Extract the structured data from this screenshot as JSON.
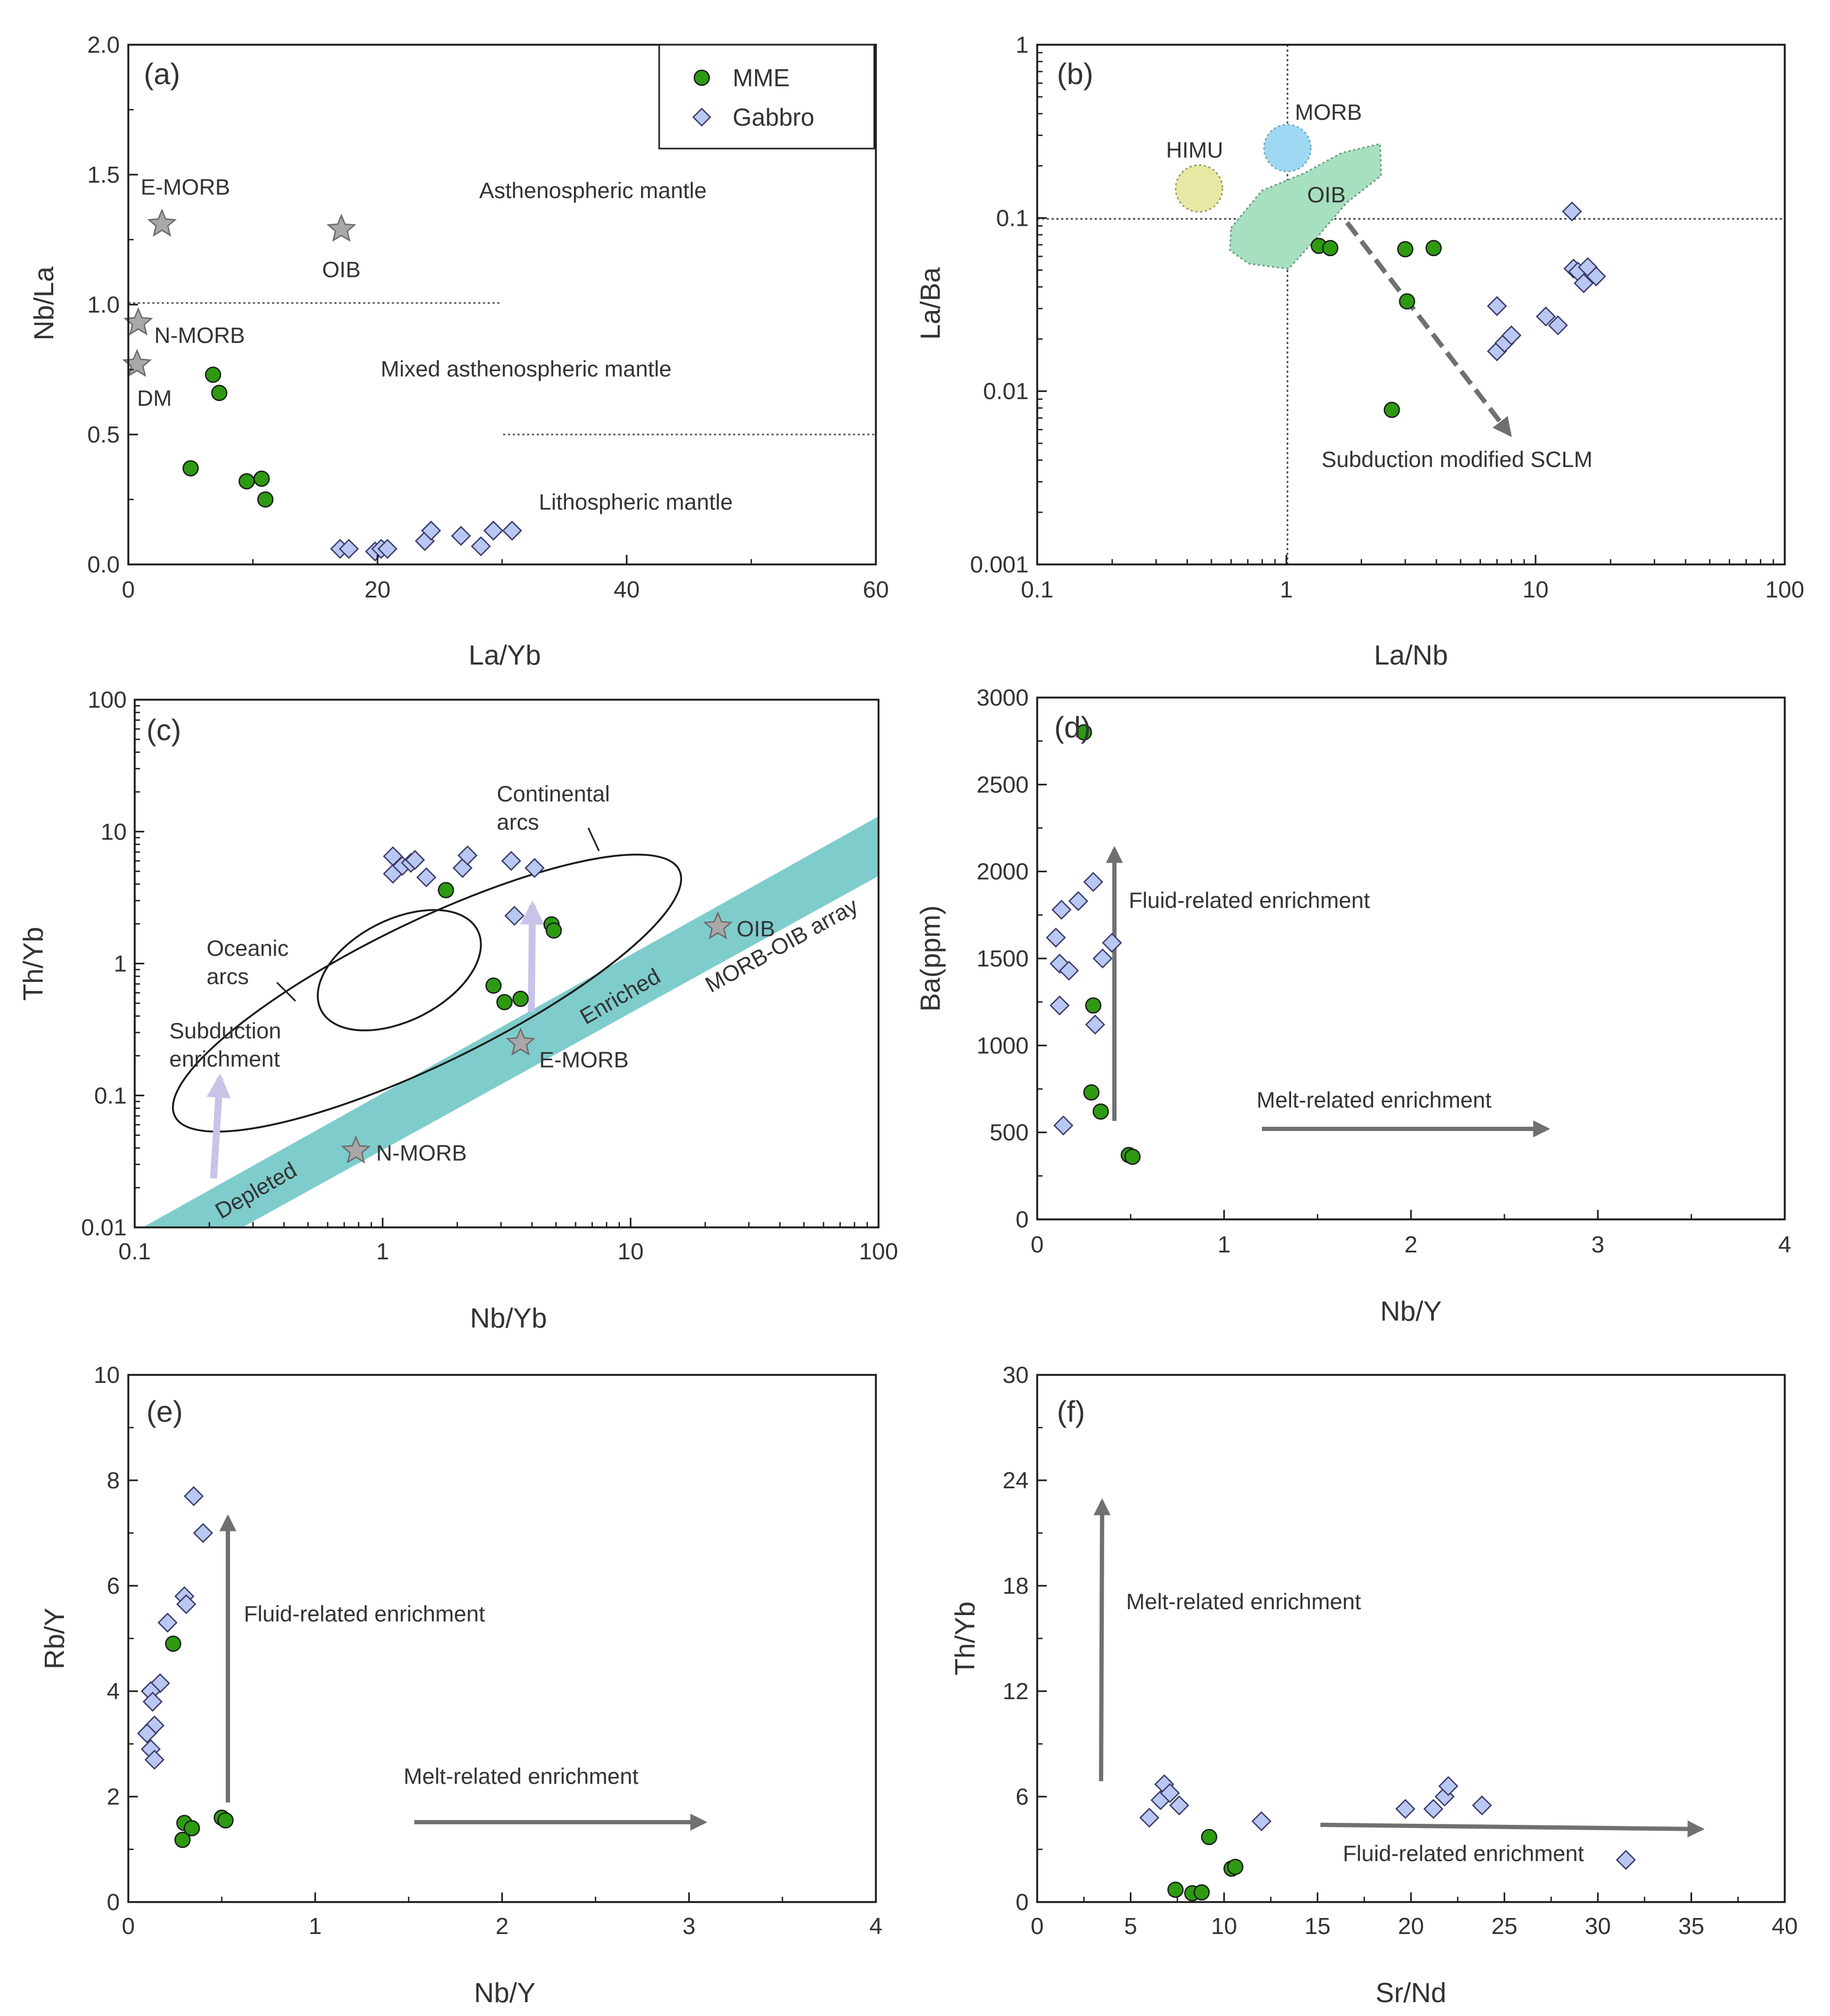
{
  "colors": {
    "mme": "#2e9a12",
    "gabbro": "#b9c8f2",
    "star": "#a8a8a8",
    "arrow": "#707070",
    "subduction_arrow": "#c7c4e8",
    "oib_field": "#a6e0c0",
    "morb_field": "#9fd8f2",
    "himu_field": "#e6e9a4",
    "array_band": "#7fcccc"
  },
  "legend": {
    "mme_label": "MME",
    "gabbro_label": "Gabbro"
  },
  "chart_data": [
    {
      "id": "a",
      "type": "scatter",
      "panel_label": "(a)",
      "xlabel": "La/Yb",
      "ylabel": "Nb/La",
      "xlim": [
        0,
        60
      ],
      "ylim": [
        0,
        2.0
      ],
      "xticks": [
        "0",
        "20",
        "40",
        "60"
      ],
      "yticks": [
        "0.0",
        "0.5",
        "1.0",
        "1.5",
        "2.0"
      ],
      "series": [
        {
          "name": "MME",
          "points": [
            [
              6.8,
              0.73
            ],
            [
              7.3,
              0.66
            ],
            [
              5.0,
              0.37
            ],
            [
              9.5,
              0.32
            ],
            [
              10.7,
              0.33
            ],
            [
              11.0,
              0.25
            ]
          ]
        },
        {
          "name": "Gabbro",
          "points": [
            [
              17.0,
              0.06
            ],
            [
              17.7,
              0.06
            ],
            [
              19.8,
              0.05
            ],
            [
              20.3,
              0.06
            ],
            [
              20.8,
              0.06
            ],
            [
              23.8,
              0.09
            ],
            [
              24.3,
              0.13
            ],
            [
              26.7,
              0.11
            ],
            [
              28.3,
              0.07
            ],
            [
              29.3,
              0.13
            ],
            [
              30.8,
              0.13
            ]
          ]
        }
      ],
      "references": [
        {
          "label": "E-MORB",
          "x": 2.7,
          "y": 1.31
        },
        {
          "label": "OIB",
          "x": 17.1,
          "y": 1.29
        },
        {
          "label": "N-MORB",
          "x": 0.8,
          "y": 0.93
        },
        {
          "label": "DM",
          "x": 0.7,
          "y": 0.77
        }
      ],
      "region_labels": [
        "Asthenospheric mantle",
        "Mixed asthenospheric mantle",
        "Lithospheric mantle"
      ]
    },
    {
      "id": "b",
      "type": "scatter",
      "panel_label": "(b)",
      "xlabel": "La/Nb",
      "ylabel": "La/Ba",
      "log": true,
      "xlim": [
        0.1,
        100
      ],
      "ylim": [
        0.001,
        1
      ],
      "xticks": [
        "0.1",
        "1",
        "10",
        "100"
      ],
      "yticks": [
        "0.001",
        "0.01",
        "0.1",
        "1"
      ],
      "series": [
        {
          "name": "MME",
          "points": [
            [
              1.35,
              0.069
            ],
            [
              1.5,
              0.067
            ],
            [
              3.0,
              0.066
            ],
            [
              3.9,
              0.067
            ],
            [
              3.05,
              0.033
            ],
            [
              2.65,
              0.0078
            ]
          ]
        },
        {
          "name": "Gabbro",
          "points": [
            [
              14.0,
              0.109
            ],
            [
              14.2,
              0.051
            ],
            [
              14.8,
              0.049
            ],
            [
              15.6,
              0.042
            ],
            [
              16.2,
              0.052
            ],
            [
              17.5,
              0.046
            ],
            [
              7.0,
              0.031
            ],
            [
              11.0,
              0.027
            ],
            [
              12.3,
              0.024
            ],
            [
              7.0,
              0.017
            ],
            [
              7.5,
              0.019
            ],
            [
              8.0,
              0.021
            ]
          ]
        }
      ],
      "field_labels": [
        "HIMU",
        "MORB",
        "OIB"
      ],
      "trend_label": "Subduction modified SCLM"
    },
    {
      "id": "c",
      "type": "scatter",
      "panel_label": "(c)",
      "xlabel": "Nb/Yb",
      "ylabel": "Th/Yb",
      "log": true,
      "xlim": [
        0.1,
        100
      ],
      "ylim": [
        0.01,
        100
      ],
      "xticks": [
        "0.1",
        "1",
        "10",
        "100"
      ],
      "yticks": [
        "0.01",
        "0.1",
        "1",
        "10",
        "100"
      ],
      "series": [
        {
          "name": "MME",
          "points": [
            [
              1.8,
              3.6
            ],
            [
              2.8,
              0.68
            ],
            [
              3.1,
              0.51
            ],
            [
              3.6,
              0.54
            ],
            [
              4.8,
              1.98
            ],
            [
              4.9,
              1.78
            ]
          ]
        },
        {
          "name": "Gabbro",
          "points": [
            [
              1.1,
              6.5
            ],
            [
              1.1,
              4.8
            ],
            [
              1.2,
              5.5
            ],
            [
              1.3,
              5.8
            ],
            [
              1.35,
              6.1
            ],
            [
              1.5,
              4.5
            ],
            [
              2.1,
              5.3
            ],
            [
              2.2,
              6.6
            ],
            [
              3.3,
              6.0
            ],
            [
              3.4,
              2.3
            ],
            [
              4.1,
              5.3
            ]
          ]
        }
      ],
      "references": [
        {
          "label": "OIB",
          "x": 22.5,
          "y": 1.9
        },
        {
          "label": "E-MORB",
          "x": 3.6,
          "y": 0.25
        },
        {
          "label": "N-MORB",
          "x": 0.78,
          "y": 0.038
        }
      ],
      "field_labels": [
        "Continental",
        "arcs",
        "Oceanic",
        "arcs",
        "MORB-OIB array",
        "Enriched",
        "Depleted"
      ],
      "trend_label": [
        "Subduction",
        "enrichment"
      ]
    },
    {
      "id": "d",
      "type": "scatter",
      "panel_label": "(d)",
      "xlabel": "Nb/Y",
      "ylabel": "Ba(ppm)",
      "xlim": [
        0,
        4
      ],
      "ylim": [
        0,
        3000
      ],
      "xticks": [
        "0",
        "1",
        "2",
        "3",
        "4"
      ],
      "yticks": [
        "0",
        "500",
        "1000",
        "1500",
        "2000",
        "2500",
        "3000"
      ],
      "series": [
        {
          "name": "MME",
          "points": [
            [
              0.25,
              2800
            ],
            [
              0.3,
              1230
            ],
            [
              0.29,
              730
            ],
            [
              0.34,
              620
            ],
            [
              0.49,
              370
            ],
            [
              0.51,
              360
            ]
          ]
        },
        {
          "name": "Gabbro",
          "points": [
            [
              0.3,
              1940
            ],
            [
              0.22,
              1830
            ],
            [
              0.13,
              1780
            ],
            [
              0.1,
              1620
            ],
            [
              0.12,
              1470
            ],
            [
              0.17,
              1430
            ],
            [
              0.35,
              1500
            ],
            [
              0.4,
              1590
            ],
            [
              0.12,
              1230
            ],
            [
              0.31,
              1120
            ],
            [
              0.14,
              540
            ]
          ]
        }
      ],
      "trend_labels": [
        "Fluid-related enrichment",
        "Melt-related enrichment"
      ]
    },
    {
      "id": "e",
      "type": "scatter",
      "panel_label": "(e)",
      "xlabel": "Nb/Y",
      "ylabel": "Rb/Y",
      "xlim": [
        0,
        4
      ],
      "ylim": [
        0,
        10
      ],
      "xticks": [
        "0",
        "1",
        "2",
        "3",
        "4"
      ],
      "yticks": [
        "0",
        "2",
        "4",
        "6",
        "8",
        "10"
      ],
      "series": [
        {
          "name": "MME",
          "points": [
            [
              0.24,
              4.9
            ],
            [
              0.3,
              1.5
            ],
            [
              0.29,
              1.18
            ],
            [
              0.34,
              1.4
            ],
            [
              0.5,
              1.6
            ],
            [
              0.52,
              1.55
            ]
          ]
        },
        {
          "name": "Gabbro",
          "points": [
            [
              0.35,
              7.7
            ],
            [
              0.4,
              7.0
            ],
            [
              0.3,
              5.8
            ],
            [
              0.31,
              5.65
            ],
            [
              0.21,
              5.3
            ],
            [
              0.17,
              4.15
            ],
            [
              0.12,
              4.0
            ],
            [
              0.13,
              3.8
            ],
            [
              0.14,
              3.35
            ],
            [
              0.1,
              3.2
            ],
            [
              0.12,
              2.9
            ],
            [
              0.14,
              2.7
            ]
          ]
        }
      ],
      "trend_labels": [
        "Fluid-related enrichment",
        "Melt-related enrichment"
      ]
    },
    {
      "id": "f",
      "type": "scatter",
      "panel_label": "(f)",
      "xlabel": "Sr/Nd",
      "ylabel": "Th/Yb",
      "xlim": [
        0,
        40
      ],
      "ylim": [
        0,
        30
      ],
      "xticks": [
        "0",
        "5",
        "10",
        "15",
        "20",
        "25",
        "30",
        "35",
        "40"
      ],
      "yticks": [
        "0",
        "6",
        "12",
        "18",
        "24",
        "30"
      ],
      "series": [
        {
          "name": "MME",
          "points": [
            [
              7.4,
              0.7
            ],
            [
              8.3,
              0.5
            ],
            [
              8.8,
              0.55
            ],
            [
              9.2,
              3.7
            ],
            [
              10.4,
              1.9
            ],
            [
              10.6,
              2.0
            ]
          ]
        },
        {
          "name": "Gabbro",
          "points": [
            [
              6.0,
              4.8
            ],
            [
              6.6,
              5.8
            ],
            [
              6.8,
              6.7
            ],
            [
              7.1,
              6.2
            ],
            [
              7.6,
              5.5
            ],
            [
              12.0,
              4.6
            ],
            [
              19.7,
              5.3
            ],
            [
              21.2,
              5.3
            ],
            [
              21.8,
              6.0
            ],
            [
              22.0,
              6.6
            ],
            [
              23.8,
              5.5
            ],
            [
              31.5,
              2.4
            ]
          ]
        }
      ],
      "trend_labels": [
        "Melt-related enrichment",
        "Fluid-related enrichment"
      ]
    }
  ]
}
